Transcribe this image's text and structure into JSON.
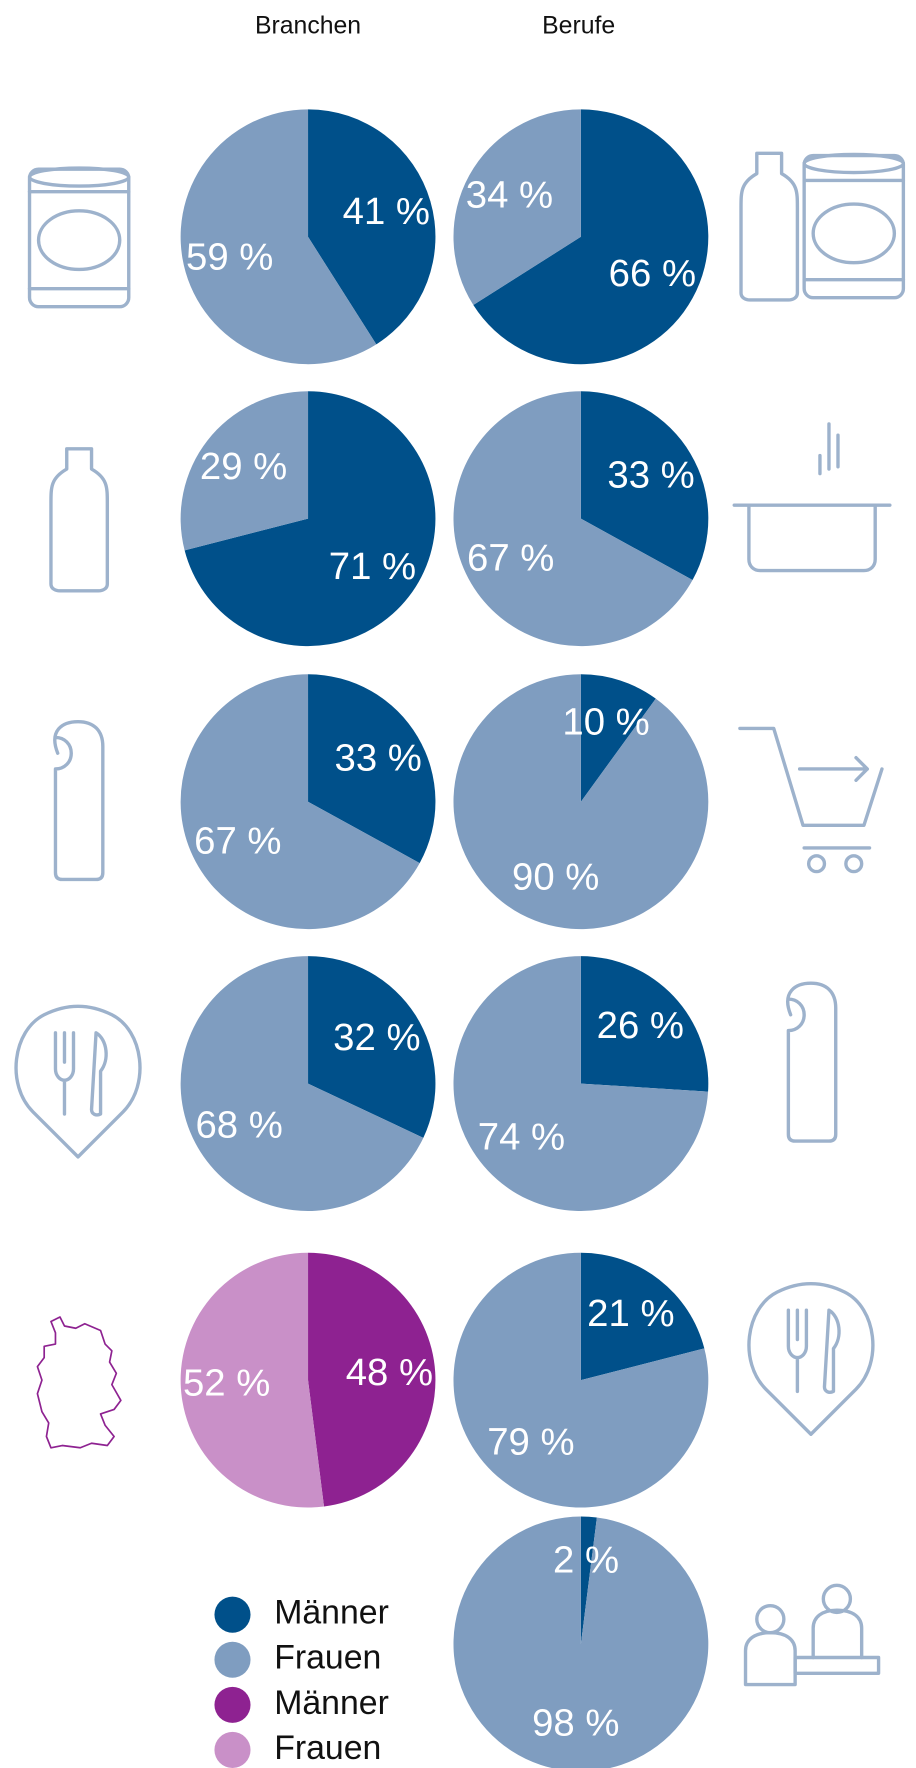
{
  "columns": [
    "Branchen",
    "Berufe"
  ],
  "chart_data": [
    {
      "type": "pie",
      "values": [
        41,
        59
      ],
      "value_labels": [
        "41 %",
        "59 %"
      ],
      "colors": [
        "#00508a",
        "#7f9dc0"
      ]
    },
    {
      "type": "pie",
      "values": [
        66,
        34
      ],
      "value_labels": [
        "66 %",
        "34 %"
      ],
      "colors": [
        "#00508a",
        "#7f9dc0"
      ]
    },
    {
      "type": "pie",
      "values": [
        71,
        29
      ],
      "value_labels": [
        "71 %",
        "29 %"
      ],
      "colors": [
        "#00508a",
        "#7f9dc0"
      ]
    },
    {
      "type": "pie",
      "values": [
        33,
        67
      ],
      "value_labels": [
        "33 %",
        "67 %"
      ],
      "colors": [
        "#00508a",
        "#7f9dc0"
      ]
    },
    {
      "type": "pie",
      "values": [
        33,
        67
      ],
      "value_labels": [
        "33 %",
        "67 %"
      ],
      "colors": [
        "#00508a",
        "#7f9dc0"
      ]
    },
    {
      "type": "pie",
      "values": [
        10,
        90
      ],
      "value_labels": [
        "10 %",
        "90 %"
      ],
      "colors": [
        "#00508a",
        "#7f9dc0"
      ]
    },
    {
      "type": "pie",
      "values": [
        32,
        68
      ],
      "value_labels": [
        "32 %",
        "68 %"
      ],
      "colors": [
        "#00508a",
        "#7f9dc0"
      ]
    },
    {
      "type": "pie",
      "values": [
        26,
        74
      ],
      "value_labels": [
        "26 %",
        "74 %"
      ],
      "colors": [
        "#00508a",
        "#7f9dc0"
      ]
    },
    {
      "type": "pie",
      "values": [
        48,
        52
      ],
      "value_labels": [
        "48 %",
        "52 %"
      ],
      "colors": [
        "#8e2291",
        "#c990c8"
      ]
    },
    {
      "type": "pie",
      "values": [
        21,
        79
      ],
      "value_labels": [
        "21 %",
        "79 %"
      ],
      "colors": [
        "#00508a",
        "#7f9dc0"
      ]
    },
    {
      "type": "pie",
      "values": [
        2,
        98
      ],
      "value_labels": [
        "2 %",
        "98 %"
      ],
      "colors": [
        "#00508a",
        "#7f9dc0"
      ]
    }
  ],
  "legend": [
    {
      "name": "Männer",
      "color": "#00508a"
    },
    {
      "name": "Frauen",
      "color": "#7f9dc0"
    },
    {
      "name": "Männer",
      "color": "#8e2291"
    },
    {
      "name": "Frauen",
      "color": "#c990c8"
    }
  ]
}
